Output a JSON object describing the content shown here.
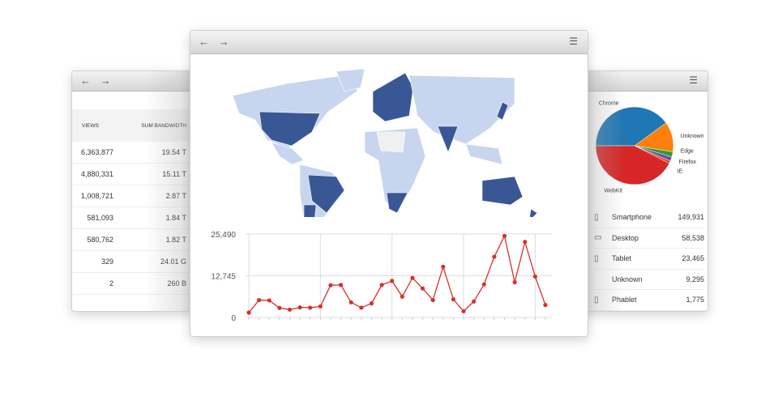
{
  "left_window": {
    "nav": "← →",
    "columns": [
      "VIEWS",
      "SUM BANDWIDTH"
    ],
    "rows": [
      [
        "6,363,877",
        "19.54 T"
      ],
      [
        "4,880,331",
        "15.11 T"
      ],
      [
        "1,008,721",
        "2.87 T"
      ],
      [
        "581,093",
        "1.84 T"
      ],
      [
        "580,762",
        "1.82 T"
      ],
      [
        "329",
        "24.01 G"
      ],
      [
        "2",
        "260 B"
      ]
    ]
  },
  "center_window": {
    "nav": "← →",
    "menu": "☰",
    "map": {
      "colors": {
        "high": "#3a5795",
        "low": "#c7d6ee",
        "none": "#f0f0f0"
      },
      "highlighted": [
        "United States",
        "Brazil",
        "Argentina",
        "Europe",
        "India",
        "South Africa",
        "Australia",
        "Japan"
      ]
    },
    "chart_data": {
      "type": "line",
      "color": "#d9302a",
      "yticks": [
        "25,490",
        "12,745",
        "0"
      ],
      "ylim": [
        0,
        25490
      ],
      "grid": true,
      "values": [
        1490,
        5300,
        5210,
        2900,
        2400,
        3060,
        2980,
        3390,
        9850,
        9930,
        4630,
        2980,
        4300,
        9930,
        11170,
        6370,
        12080,
        8860,
        5300,
        15480,
        5540,
        1900,
        4880,
        10100,
        18540,
        24910,
        10760,
        23090,
        12500,
        3810
      ]
    }
  },
  "right_window": {
    "menu": "☰",
    "pie": {
      "type": "pie",
      "slices": [
        {
          "name": "Chrome",
          "value": 40,
          "color": "#1f77b4"
        },
        {
          "name": "Unknown",
          "value": 12.5,
          "color": "#ff7f0e"
        },
        {
          "name": "Edge",
          "value": 2.2,
          "color": "#2ca02c"
        },
        {
          "name": "Firefox",
          "value": 1.7,
          "color": "#7b3fb8"
        },
        {
          "name": "IE",
          "value": 1.1,
          "color": "#c0562a"
        },
        {
          "name": "WebKit",
          "value": 42.5,
          "color": "#d62728"
        }
      ]
    },
    "devices": [
      {
        "icon": "smartphone-icon",
        "label": "Smartphone",
        "value": "149,931"
      },
      {
        "icon": "desktop-icon",
        "label": "Desktop",
        "value": "58,538"
      },
      {
        "icon": "tablet-icon",
        "label": "Tablet",
        "value": "23,465"
      },
      {
        "icon": "",
        "label": "Unknown",
        "value": "9,295"
      },
      {
        "icon": "phablet-icon",
        "label": "Phablet",
        "value": "1,775"
      }
    ]
  }
}
